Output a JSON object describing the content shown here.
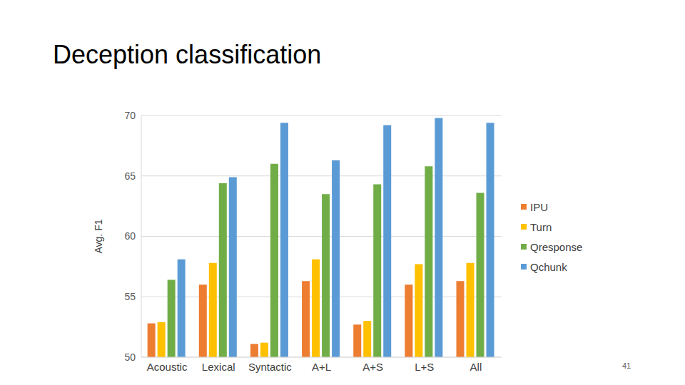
{
  "chart_data": {
    "type": "bar",
    "title": "Deception classification",
    "y_label": "Avg. F1",
    "categories": [
      "Acoustic",
      "Lexical",
      "Syntactic",
      "A+L",
      "A+S",
      "L+S",
      "All"
    ],
    "series": [
      {
        "name": "IPU",
        "color": "#ed7d31",
        "values": [
          52.8,
          56.0,
          51.1,
          56.3,
          52.7,
          56.0,
          56.3
        ]
      },
      {
        "name": "Turn",
        "color": "#ffc000",
        "values": [
          52.9,
          57.8,
          51.2,
          58.1,
          53.0,
          57.7,
          57.8
        ]
      },
      {
        "name": "Qresponse",
        "color": "#70ad47",
        "values": [
          56.4,
          64.4,
          66.0,
          63.5,
          64.3,
          65.8,
          63.6
        ]
      },
      {
        "name": "Qchunk",
        "color": "#5b9bd5",
        "values": [
          58.1,
          64.9,
          69.4,
          66.3,
          69.2,
          69.8,
          69.4
        ]
      }
    ],
    "ylim": [
      50,
      70
    ],
    "yticks": [
      50,
      55,
      60,
      65,
      70
    ],
    "grid": true,
    "legend": "right"
  },
  "slide_number": "41"
}
